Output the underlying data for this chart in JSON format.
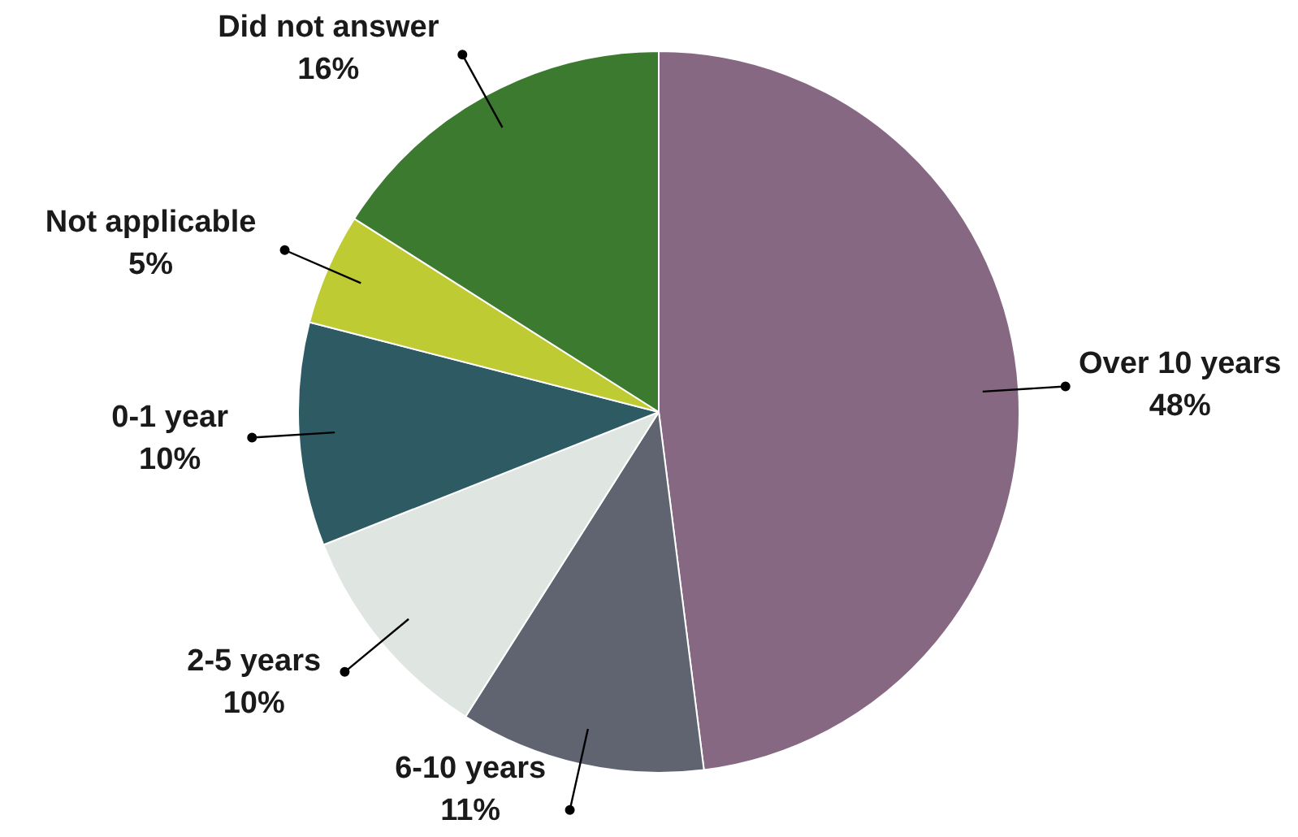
{
  "chart_data": {
    "type": "pie",
    "categories": [
      "Over 10 years",
      "6-10 years",
      "2-5 years",
      "0-1 year",
      "Not applicable",
      "Did not answer"
    ],
    "values": [
      48,
      11,
      10,
      10,
      5,
      16
    ],
    "colors": [
      "#876882",
      "#5f6470",
      "#dfe5e0",
      "#2e5b63",
      "#bfcb33",
      "#3c7a30"
    ],
    "value_labels": [
      "48%",
      "11%",
      "10%",
      "10%",
      "5%",
      "16%"
    ]
  }
}
